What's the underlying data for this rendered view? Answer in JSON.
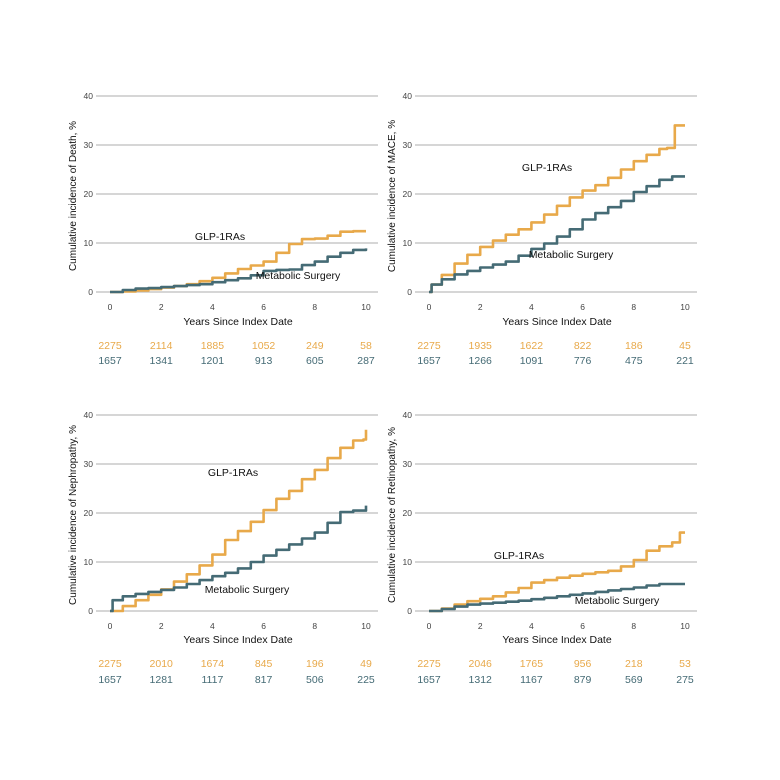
{
  "colors": {
    "glp": "#E8A94A",
    "surgery": "#456B75",
    "grid": "#BDBDBD",
    "axis_text": "#444444",
    "label_text": "#111111"
  },
  "chart_data": [
    {
      "type": "line",
      "title": "",
      "xlabel": "Years Since Index Date",
      "ylabel": "Cumulative incidence of Death, %",
      "xlim": [
        0,
        10
      ],
      "ylim": [
        0,
        40
      ],
      "xticks": [
        0,
        2,
        4,
        6,
        8,
        10
      ],
      "yticks": [
        0,
        10,
        20,
        30,
        40
      ],
      "grid": "horizontal",
      "annotations": [
        "GLP-1RAs",
        "Metabolic Surgery"
      ],
      "series": [
        {
          "name": "GLP-1RAs",
          "x": [
            0,
            0.5,
            1,
            1.5,
            2,
            2.5,
            3,
            3.5,
            4,
            4.5,
            5,
            5.5,
            6,
            6.5,
            7,
            7.5,
            8,
            8.5,
            9,
            9.5,
            10
          ],
          "y": [
            0,
            0.1,
            0.3,
            0.6,
            0.9,
            1.2,
            1.6,
            2.2,
            2.9,
            3.8,
            4.7,
            5.4,
            6.2,
            8.0,
            9.8,
            10.8,
            10.9,
            11.5,
            12.3,
            12.4,
            12.4
          ]
        },
        {
          "name": "Metabolic Surgery",
          "x": [
            0,
            0.5,
            1,
            1.5,
            2,
            2.5,
            3,
            3.5,
            4,
            4.5,
            5,
            5.5,
            6,
            6.5,
            7,
            7.5,
            8,
            8.5,
            9,
            9.5,
            10
          ],
          "y": [
            0,
            0.4,
            0.7,
            0.8,
            1.0,
            1.2,
            1.4,
            1.6,
            2.0,
            2.4,
            2.8,
            3.4,
            4.3,
            4.5,
            4.6,
            5.5,
            6.2,
            7.2,
            8.0,
            8.6,
            8.9
          ]
        }
      ],
      "risk_table": {
        "x": [
          0,
          2,
          4,
          6,
          8,
          10
        ],
        "rows": [
          {
            "name": "GLP-1RAs",
            "values": [
              "2275",
              "2114",
              "1885",
              "1052",
              "249",
              "58"
            ]
          },
          {
            "name": "Metabolic Surgery",
            "values": [
              "1657",
              "1341",
              "1201",
              "913",
              "605",
              "287"
            ]
          }
        ]
      }
    },
    {
      "type": "line",
      "title": "",
      "xlabel": "Years Since Index Date",
      "ylabel": "Cumulative incidence of MACE, %",
      "xlim": [
        0,
        10
      ],
      "ylim": [
        0,
        40
      ],
      "xticks": [
        0,
        2,
        4,
        6,
        8,
        10
      ],
      "yticks": [
        0,
        10,
        20,
        30,
        40
      ],
      "grid": "horizontal",
      "annotations": [
        "GLP-1RAs",
        "Metabolic Surgery"
      ],
      "series": [
        {
          "name": "GLP-1RAs",
          "x": [
            0,
            0.1,
            0.5,
            1,
            1.5,
            2,
            2.5,
            3,
            3.5,
            4,
            4.5,
            5,
            5.5,
            6,
            6.5,
            7,
            7.5,
            8,
            8.5,
            9,
            9.3,
            9.6,
            10
          ],
          "y": [
            0,
            1.5,
            3.5,
            5.8,
            7.6,
            9.2,
            10.5,
            11.7,
            12.8,
            14.2,
            15.8,
            17.6,
            19.3,
            20.7,
            21.8,
            23.3,
            25.0,
            26.7,
            28.0,
            29.2,
            29.4,
            34.0,
            34.0
          ]
        },
        {
          "name": "Metabolic Surgery",
          "x": [
            0,
            0.1,
            0.5,
            1,
            1.5,
            2,
            2.5,
            3,
            3.5,
            4,
            4.5,
            5,
            5.5,
            6,
            6.5,
            7,
            7.5,
            8,
            8.5,
            9,
            9.5,
            10
          ],
          "y": [
            0,
            1.5,
            2.6,
            3.6,
            4.3,
            5.0,
            5.6,
            6.2,
            7.4,
            8.8,
            9.9,
            11.3,
            12.8,
            14.8,
            16.1,
            17.3,
            18.6,
            20.4,
            21.6,
            22.9,
            23.6,
            23.6
          ]
        }
      ],
      "risk_table": {
        "x": [
          0,
          2,
          4,
          6,
          8,
          10
        ],
        "rows": [
          {
            "name": "GLP-1RAs",
            "values": [
              "2275",
              "1935",
              "1622",
              "822",
              "186",
              "45"
            ]
          },
          {
            "name": "Metabolic Surgery",
            "values": [
              "1657",
              "1266",
              "1091",
              "776",
              "475",
              "221"
            ]
          }
        ]
      }
    },
    {
      "type": "line",
      "title": "",
      "xlabel": "Years Since Index Date",
      "ylabel": "Cumulative incidence of Nephropathy, %",
      "xlim": [
        0,
        10
      ],
      "ylim": [
        0,
        40
      ],
      "xticks": [
        0,
        2,
        4,
        6,
        8,
        10
      ],
      "yticks": [
        0,
        10,
        20,
        30,
        40
      ],
      "grid": "horizontal",
      "annotations": [
        "GLP-1RAs",
        "Metabolic Surgery"
      ],
      "series": [
        {
          "name": "GLP-1RAs",
          "x": [
            0,
            0.5,
            1,
            1.5,
            2,
            2.5,
            3,
            3.5,
            4,
            4.5,
            5,
            5.5,
            6,
            6.5,
            7,
            7.5,
            8,
            8.5,
            9,
            9.5,
            9.9,
            10
          ],
          "y": [
            0,
            1.0,
            2.2,
            3.3,
            4.4,
            6.0,
            7.5,
            9.3,
            11.5,
            14.5,
            16.3,
            18.2,
            20.6,
            22.9,
            24.5,
            26.9,
            28.8,
            31.2,
            33.3,
            34.8,
            35.0,
            37.0
          ]
        },
        {
          "name": "Metabolic Surgery",
          "x": [
            0,
            0.1,
            0.5,
            1,
            1.5,
            2,
            2.5,
            3,
            3.5,
            4,
            4.5,
            5,
            5.5,
            6,
            6.5,
            7,
            7.5,
            8,
            8.5,
            9,
            9.5,
            10
          ],
          "y": [
            0,
            2.2,
            3.0,
            3.5,
            3.9,
            4.3,
            4.8,
            5.5,
            6.3,
            7.1,
            7.8,
            8.7,
            10.0,
            11.3,
            12.5,
            13.6,
            14.8,
            16.0,
            18.0,
            20.2,
            20.5,
            21.5
          ]
        }
      ],
      "risk_table": {
        "x": [
          0,
          2,
          4,
          6,
          8,
          10
        ],
        "rows": [
          {
            "name": "GLP-1RAs",
            "values": [
              "2275",
              "2010",
              "1674",
              "845",
              "196",
              "49"
            ]
          },
          {
            "name": "Metabolic Surgery",
            "values": [
              "1657",
              "1281",
              "1117",
              "817",
              "506",
              "225"
            ]
          }
        ]
      }
    },
    {
      "type": "line",
      "title": "",
      "xlabel": "Years Since Index Date",
      "ylabel": "Cumulative incidence of Retinopathy, %",
      "xlim": [
        0,
        10
      ],
      "ylim": [
        0,
        40
      ],
      "xticks": [
        0,
        2,
        4,
        6,
        8,
        10
      ],
      "yticks": [
        0,
        10,
        20,
        30,
        40
      ],
      "grid": "horizontal",
      "annotations": [
        "GLP-1RAs",
        "Metabolic Surgery"
      ],
      "series": [
        {
          "name": "GLP-1RAs",
          "x": [
            0,
            0.5,
            1,
            1.5,
            2,
            2.5,
            3,
            3.5,
            4,
            4.5,
            5,
            5.5,
            6,
            6.5,
            7,
            7.5,
            8,
            8.5,
            9,
            9.5,
            9.8,
            10
          ],
          "y": [
            0,
            0.5,
            1.3,
            2.0,
            2.5,
            3.0,
            3.8,
            4.7,
            5.8,
            6.3,
            6.8,
            7.2,
            7.6,
            7.9,
            8.2,
            9.1,
            10.4,
            12.3,
            13.2,
            14.0,
            16.0,
            16.0
          ]
        },
        {
          "name": "Metabolic Surgery",
          "x": [
            0,
            0.5,
            1,
            1.5,
            2,
            2.5,
            3,
            3.5,
            4,
            4.5,
            5,
            5.5,
            6,
            6.5,
            7,
            7.5,
            8,
            8.5,
            9,
            9.5,
            10
          ],
          "y": [
            0,
            0.4,
            0.9,
            1.3,
            1.5,
            1.7,
            1.9,
            2.1,
            2.4,
            2.7,
            3.0,
            3.3,
            3.6,
            3.9,
            4.2,
            4.5,
            4.8,
            5.2,
            5.5,
            5.5,
            5.5
          ]
        }
      ],
      "risk_table": {
        "x": [
          0,
          2,
          4,
          6,
          8,
          10
        ],
        "rows": [
          {
            "name": "GLP-1RAs",
            "values": [
              "2275",
              "2046",
              "1765",
              "956",
              "218",
              "53"
            ]
          },
          {
            "name": "Metabolic Surgery",
            "values": [
              "1657",
              "1312",
              "1167",
              "879",
              "569",
              "275"
            ]
          }
        ]
      }
    }
  ]
}
